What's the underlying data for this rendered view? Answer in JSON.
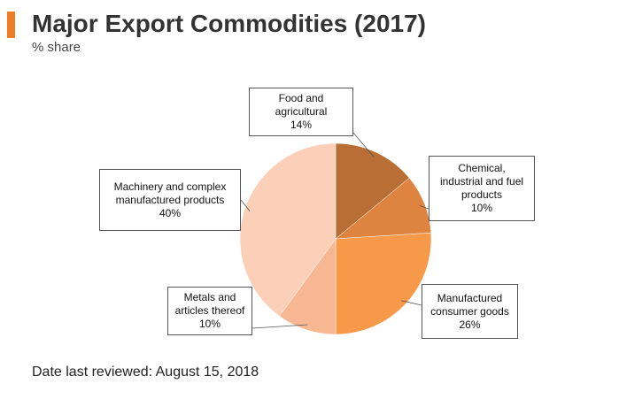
{
  "header": {
    "title": "Major Export Commodities (2017)",
    "subtitle": "% share",
    "accent_color": "#f07c28"
  },
  "chart_data": {
    "type": "pie",
    "title": "Major Export Commodities (2017)",
    "subtitle": "% share",
    "slices": [
      {
        "label": "Food and agricultural",
        "value": 14,
        "value_label": "14%",
        "color": "#b86e34"
      },
      {
        "label": "Chemical, industrial and fuel products",
        "value": 10,
        "value_label": "10%",
        "color": "#de8440"
      },
      {
        "label": "Manufactured consumer goods",
        "value": 26,
        "value_label": "26%",
        "color": "#f69948"
      },
      {
        "label": "Metals and articles thereof",
        "value": 10,
        "value_label": "10%",
        "color": "#f8b793"
      },
      {
        "label": "Machinery and complex manufactured products",
        "value": 40,
        "value_label": "40%",
        "color": "#fbcfb8"
      }
    ],
    "callouts": [
      {
        "lines": [
          "Food and",
          "agricultural",
          "14%"
        ]
      },
      {
        "lines": [
          "Chemical,",
          "industrial and fuel",
          "products",
          "10%"
        ]
      },
      {
        "lines": [
          "Manufactured",
          "consumer goods",
          "26%"
        ]
      },
      {
        "lines": [
          "Metals and",
          "articles thereof",
          "10%"
        ]
      },
      {
        "lines": [
          "Machinery and complex",
          "manufactured products",
          "40%"
        ]
      }
    ]
  },
  "footer": {
    "text": "Date last reviewed: August 15, 2018"
  }
}
